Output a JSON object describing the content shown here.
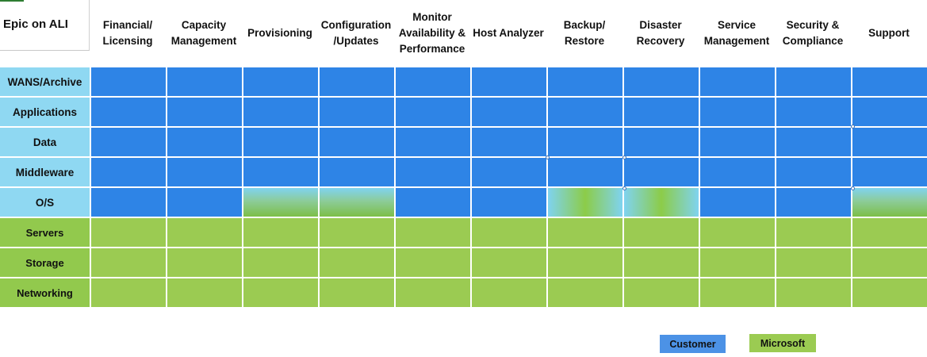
{
  "corner_title": "Epic on ALI",
  "columns": [
    "Financial/\nLicensing",
    "Capacity\nManagement",
    "Provisioning",
    "Configuration\n/Updates",
    "Monitor\nAvailability &\nPerformance",
    "Host Analyzer",
    "Backup/\nRestore",
    "Disaster\nRecovery",
    "Service\nManagement",
    "Security &\nCompliance",
    "Support"
  ],
  "rows": [
    {
      "label": "WANS/Archive",
      "owner": "customer",
      "cells": [
        "customer",
        "customer",
        "customer",
        "customer",
        "customer",
        "customer",
        "customer",
        "customer",
        "customer",
        "customer",
        "customer"
      ]
    },
    {
      "label": "Applications",
      "owner": "customer",
      "cells": [
        "customer",
        "customer",
        "customer",
        "customer",
        "customer",
        "customer",
        "customer",
        "customer",
        "customer",
        "customer",
        "customer"
      ]
    },
    {
      "label": "Data",
      "owner": "customer",
      "cells": [
        "customer",
        "customer",
        "customer",
        "customer",
        "customer",
        "customer",
        "customer",
        "customer",
        "customer",
        "customer",
        "customer"
      ]
    },
    {
      "label": "Middleware",
      "owner": "customer",
      "cells": [
        "customer",
        "customer",
        "customer",
        "customer",
        "customer",
        "customer",
        "customer",
        "customer",
        "customer",
        "customer",
        "customer"
      ]
    },
    {
      "label": "O/S",
      "owner": "customer",
      "cells": [
        "customer",
        "customer",
        "shared-vertical",
        "shared-vertical",
        "customer",
        "customer",
        "shared-horizontal",
        "shared-horizontal",
        "customer",
        "customer",
        "shared-vertical"
      ]
    },
    {
      "label": "Servers",
      "owner": "microsoft",
      "cells": [
        "microsoft",
        "microsoft",
        "microsoft",
        "microsoft",
        "microsoft",
        "microsoft",
        "microsoft",
        "microsoft",
        "microsoft",
        "microsoft",
        "microsoft"
      ]
    },
    {
      "label": "Storage",
      "owner": "microsoft",
      "cells": [
        "microsoft",
        "microsoft",
        "microsoft",
        "microsoft",
        "microsoft",
        "microsoft",
        "microsoft",
        "microsoft",
        "microsoft",
        "microsoft",
        "microsoft"
      ]
    },
    {
      "label": "Networking",
      "owner": "microsoft",
      "cells": [
        "microsoft",
        "microsoft",
        "microsoft",
        "microsoft",
        "microsoft",
        "microsoft",
        "microsoft",
        "microsoft",
        "microsoft",
        "microsoft",
        "microsoft"
      ]
    }
  ],
  "legend": {
    "customer": "Customer",
    "microsoft": "Microsoft"
  },
  "colors": {
    "customer": "#2e84e6",
    "microsoft": "#9bcb52",
    "row_header_customer": "#8fd8f2"
  }
}
